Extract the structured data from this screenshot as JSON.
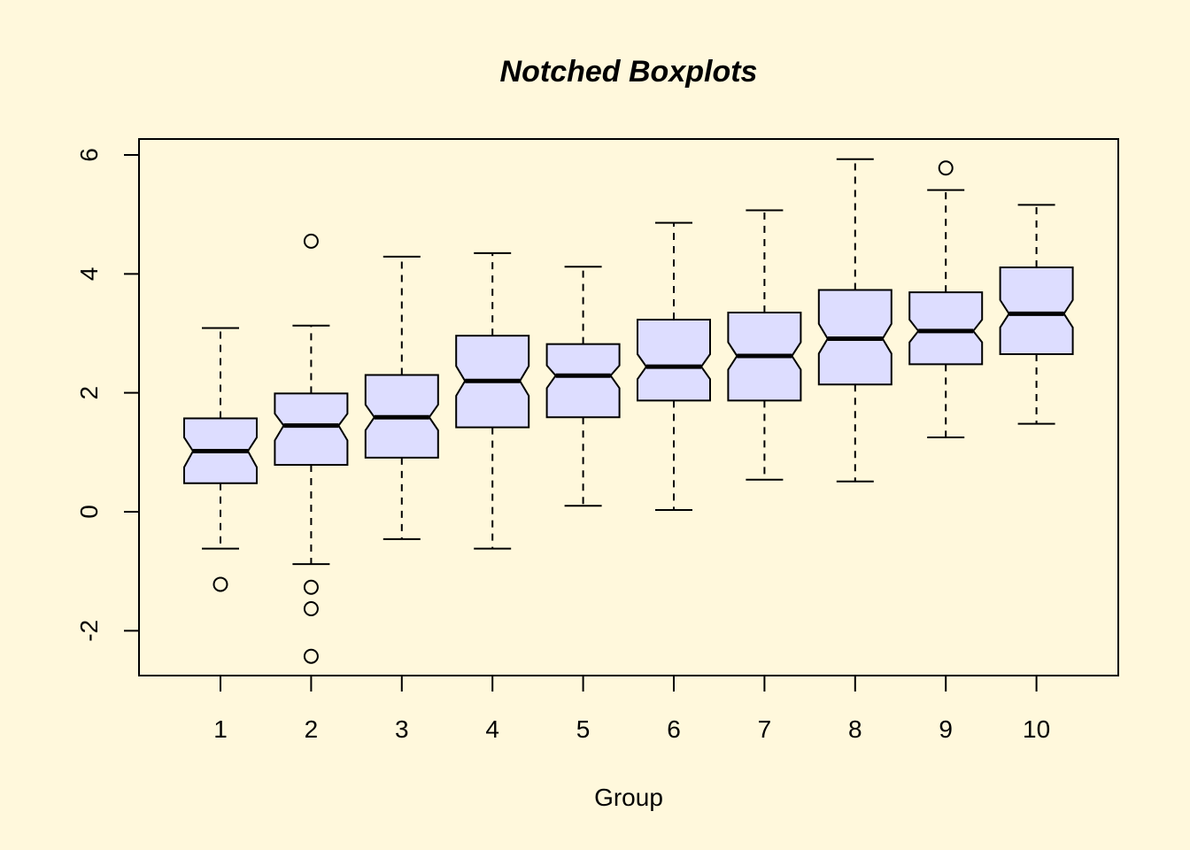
{
  "chart_data": {
    "type": "boxplot",
    "title": "Notched Boxplots",
    "xlabel": "Group",
    "ylabel": "",
    "ylim": [
      -2.75,
      6.3
    ],
    "y_ticks": [
      -2,
      0,
      2,
      4,
      6
    ],
    "y_tick_labels": [
      "-2",
      "0",
      "2",
      "4",
      "6"
    ],
    "categories": [
      "1",
      "2",
      "3",
      "4",
      "5",
      "6",
      "7",
      "8",
      "9",
      "10"
    ],
    "box_fill": "#DDDDFF",
    "background": "#FFF8DC",
    "notched": true,
    "grid": false,
    "boxes": [
      {
        "group": "1",
        "whisker_low": -0.62,
        "q1": 0.48,
        "median": 1.02,
        "q3": 1.57,
        "whisker_high": 3.09,
        "notch_low": 0.75,
        "notch_high": 1.25,
        "outliers": [
          -1.22
        ]
      },
      {
        "group": "2",
        "whisker_low": -0.88,
        "q1": 0.79,
        "median": 1.45,
        "q3": 1.99,
        "whisker_high": 3.13,
        "notch_low": 1.2,
        "notch_high": 1.65,
        "outliers": [
          4.55,
          -1.27,
          -1.63,
          -2.43
        ]
      },
      {
        "group": "3",
        "whisker_low": -0.46,
        "q1": 0.91,
        "median": 1.59,
        "q3": 2.3,
        "whisker_high": 4.29,
        "notch_low": 1.37,
        "notch_high": 1.8,
        "outliers": []
      },
      {
        "group": "4",
        "whisker_low": -0.62,
        "q1": 1.42,
        "median": 2.2,
        "q3": 2.96,
        "whisker_high": 4.35,
        "notch_low": 1.95,
        "notch_high": 2.45,
        "outliers": []
      },
      {
        "group": "5",
        "whisker_low": 0.1,
        "q1": 1.59,
        "median": 2.29,
        "q3": 2.82,
        "whisker_high": 4.12,
        "notch_low": 2.08,
        "notch_high": 2.46,
        "outliers": []
      },
      {
        "group": "6",
        "whisker_low": 0.03,
        "q1": 1.87,
        "median": 2.44,
        "q3": 3.23,
        "whisker_high": 4.86,
        "notch_low": 2.23,
        "notch_high": 2.65,
        "outliers": []
      },
      {
        "group": "7",
        "whisker_low": 0.54,
        "q1": 1.87,
        "median": 2.62,
        "q3": 3.35,
        "whisker_high": 5.07,
        "notch_low": 2.39,
        "notch_high": 2.85,
        "outliers": []
      },
      {
        "group": "8",
        "whisker_low": 0.51,
        "q1": 2.14,
        "median": 2.91,
        "q3": 3.73,
        "whisker_high": 5.93,
        "notch_low": 2.66,
        "notch_high": 3.16,
        "outliers": []
      },
      {
        "group": "9",
        "whisker_low": 1.25,
        "q1": 2.48,
        "median": 3.04,
        "q3": 3.69,
        "whisker_high": 5.41,
        "notch_low": 2.85,
        "notch_high": 3.23,
        "outliers": [
          5.78
        ]
      },
      {
        "group": "10",
        "whisker_low": 1.48,
        "q1": 2.65,
        "median": 3.33,
        "q3": 4.11,
        "whisker_high": 5.16,
        "notch_low": 3.1,
        "notch_high": 3.56,
        "outliers": []
      }
    ]
  }
}
